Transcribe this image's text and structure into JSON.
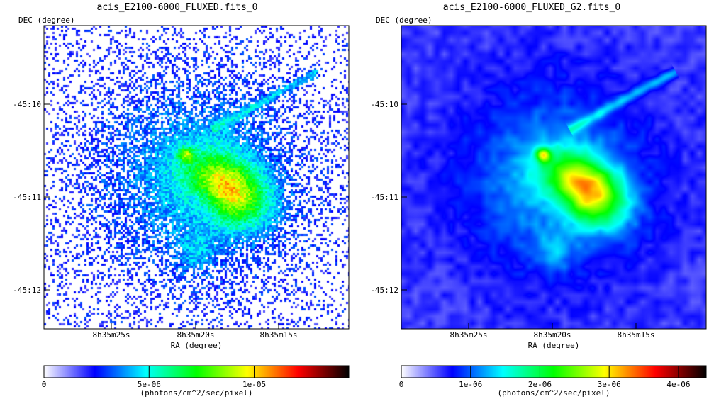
{
  "panels": [
    {
      "id": "left",
      "title": "acis_E2100-6000_FLUXED.fits_0",
      "dec_label": "DEC (degree)",
      "ra_label": "RA (degree)",
      "dec_ticks": [
        "-45:10",
        "-45:11",
        "-45:12"
      ],
      "ra_ticks": [
        "8h35m25s",
        "8h35m20s",
        "8h35m15s"
      ],
      "colorbar": {
        "units": "(photons/cm^2/sec/pixel)",
        "ticks": [
          "0",
          "5e-06",
          "1e-05"
        ],
        "tick_values": [
          0,
          5e-06,
          1e-05
        ],
        "max": 1.45e-05
      },
      "render": "noisy"
    },
    {
      "id": "right",
      "title": "acis_E2100-6000_FLUXED_G2.fits_0",
      "dec_label": "DEC (degree)",
      "ra_label": "RA (degree)",
      "dec_ticks": [
        "-45:10",
        "-45:11",
        "-45:12"
      ],
      "ra_ticks": [
        "8h35m25s",
        "8h35m20s",
        "8h35m15s"
      ],
      "colorbar": {
        "units": "(photons/cm^2/sec/pixel)",
        "ticks": [
          "0",
          "1e-06",
          "2e-06",
          "3e-06",
          "4e-06"
        ],
        "tick_values": [
          0,
          1e-06,
          2e-06,
          3e-06,
          4e-06
        ],
        "max": 4.4e-06
      },
      "render": "smooth"
    }
  ],
  "colormap": [
    "#ffffff",
    "#0000ff",
    "#00ffff",
    "#00ff00",
    "#ffff00",
    "#ff0000",
    "#000000"
  ]
}
